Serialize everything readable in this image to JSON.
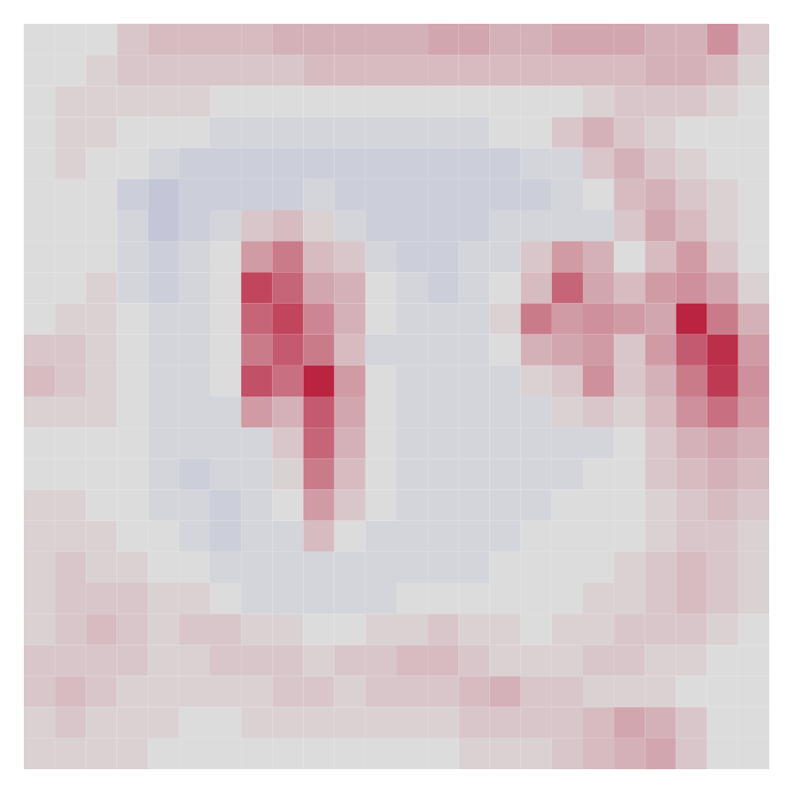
{
  "chart_data": {
    "type": "heatmap",
    "tick_labels": false,
    "zlim": [
      -1,
      1
    ],
    "z": [
      [
        0,
        0,
        0,
        0.1,
        0.15,
        0.15,
        0.15,
        0.15,
        0.2,
        0.2,
        0.2,
        0.2,
        0.2,
        0.25,
        0.25,
        0.2,
        0.2,
        0.25,
        0.25,
        0.25,
        0.2,
        0.2,
        0.35,
        0.1
      ],
      [
        0,
        0,
        0.05,
        0.1,
        0.1,
        0.1,
        0.1,
        0.1,
        0.1,
        0.15,
        0.15,
        0.15,
        0.15,
        0.15,
        0.15,
        0.15,
        0.15,
        0.15,
        0.15,
        0.15,
        0.2,
        0.2,
        0.15,
        0.05
      ],
      [
        0,
        0.05,
        0.05,
        0.05,
        0.05,
        0.05,
        0,
        0,
        0,
        0,
        0,
        0,
        0,
        0,
        0,
        0,
        0,
        0,
        0.05,
        0.1,
        0.1,
        0.1,
        0.05,
        0
      ],
      [
        0,
        0.05,
        0.05,
        0,
        0,
        0,
        -0.05,
        -0.05,
        -0.05,
        -0.05,
        -0.05,
        -0.05,
        -0.05,
        -0.05,
        -0.05,
        0,
        0,
        0.1,
        0.2,
        0.1,
        0.05,
        0,
        0,
        0
      ],
      [
        0,
        0.05,
        0,
        0,
        -0.05,
        -0.1,
        -0.1,
        -0.1,
        -0.1,
        -0.1,
        -0.1,
        -0.1,
        -0.1,
        -0.1,
        -0.1,
        -0.1,
        -0.05,
        -0.05,
        0.1,
        0.2,
        0.1,
        0.05,
        0,
        0
      ],
      [
        0,
        0,
        0,
        -0.1,
        -0.15,
        -0.1,
        -0.1,
        -0.1,
        -0.1,
        -0.05,
        -0.1,
        -0.1,
        -0.1,
        -0.1,
        -0.1,
        -0.1,
        -0.1,
        -0.05,
        0,
        0.15,
        0.2,
        0.1,
        0.05,
        0
      ],
      [
        0,
        0,
        0,
        -0.05,
        -0.15,
        -0.1,
        -0.05,
        0.1,
        0.15,
        0.05,
        -0.05,
        -0.1,
        -0.1,
        -0.1,
        -0.1,
        -0.05,
        -0.05,
        -0.05,
        -0.05,
        0.1,
        0.25,
        0.15,
        0.05,
        0
      ],
      [
        0,
        0,
        0,
        -0.05,
        -0.1,
        -0.05,
        0,
        0.3,
        0.45,
        0.15,
        0.1,
        -0.05,
        -0.1,
        -0.1,
        -0.05,
        -0.05,
        0.1,
        0.3,
        0.2,
        0,
        0.15,
        0.3,
        0.1,
        0
      ],
      [
        0,
        0,
        0.05,
        -0.05,
        -0.1,
        -0.05,
        0,
        0.7,
        0.55,
        0.25,
        0.2,
        0,
        -0.05,
        -0.1,
        -0.05,
        0,
        0.15,
        0.55,
        0.25,
        0.15,
        0.3,
        0.35,
        0.25,
        0.05
      ],
      [
        0,
        0.05,
        0.05,
        0,
        -0.05,
        -0.05,
        0,
        0.55,
        0.7,
        0.4,
        0.2,
        0,
        -0.05,
        -0.05,
        -0.05,
        0.05,
        0.45,
        0.3,
        0.35,
        0.3,
        0.25,
        0.85,
        0.45,
        0.2
      ],
      [
        0.1,
        0.1,
        0.05,
        0,
        -0.05,
        -0.05,
        0,
        0.45,
        0.6,
        0.45,
        0.15,
        -0.05,
        -0.05,
        -0.05,
        -0.05,
        0,
        0.2,
        0.25,
        0.3,
        0.1,
        0.3,
        0.6,
        0.8,
        0.3
      ],
      [
        0.15,
        0.1,
        0.05,
        0,
        -0.05,
        -0.05,
        0,
        0.65,
        0.5,
        0.85,
        0.3,
        0,
        -0.05,
        -0.05,
        -0.05,
        -0.05,
        0.05,
        0.1,
        0.35,
        0.1,
        0.2,
        0.45,
        0.75,
        0.35
      ],
      [
        0.05,
        0.05,
        0.05,
        0,
        -0.05,
        -0.05,
        -0.05,
        0.3,
        0.2,
        0.6,
        0.25,
        0,
        -0.05,
        -0.05,
        -0.05,
        -0.05,
        -0.05,
        0.05,
        0.1,
        0.05,
        0.15,
        0.35,
        0.5,
        0.3
      ],
      [
        0,
        0,
        0,
        0,
        -0.05,
        -0.05,
        -0.05,
        -0.05,
        0.1,
        0.55,
        0.2,
        0,
        -0.05,
        -0.05,
        -0.05,
        -0.05,
        -0.05,
        -0.05,
        -0.05,
        0,
        0.1,
        0.2,
        0.25,
        0.2
      ],
      [
        0,
        0,
        0,
        0,
        -0.05,
        -0.1,
        -0.05,
        -0.05,
        0.05,
        0.45,
        0.15,
        0,
        -0.05,
        -0.05,
        -0.05,
        -0.05,
        -0.05,
        -0.05,
        0,
        0,
        0.1,
        0.15,
        0.2,
        0.15
      ],
      [
        0.05,
        0.05,
        0,
        0,
        -0.05,
        -0.05,
        -0.1,
        -0.05,
        0,
        0.3,
        0.1,
        0,
        -0.05,
        -0.05,
        -0.05,
        -0.05,
        -0.05,
        0,
        0,
        0,
        0.05,
        0.1,
        0.15,
        0.1
      ],
      [
        0.05,
        0.05,
        0.05,
        0,
        0,
        -0.05,
        -0.1,
        -0.05,
        -0.05,
        0.15,
        0,
        -0.05,
        -0.05,
        -0.05,
        -0.05,
        -0.05,
        0,
        0,
        0,
        0,
        0.05,
        0.1,
        0.1,
        0.05
      ],
      [
        0.05,
        0.1,
        0.05,
        0.05,
        0,
        0,
        -0.05,
        -0.05,
        -0.05,
        -0.05,
        -0.05,
        -0.05,
        -0.05,
        -0.05,
        -0.05,
        0,
        0,
        0,
        0,
        0.05,
        0.1,
        0.15,
        0.1,
        0.05
      ],
      [
        0.05,
        0.1,
        0.1,
        0.1,
        0.05,
        0.05,
        0,
        -0.05,
        -0.05,
        -0.05,
        -0.05,
        -0.05,
        0,
        0,
        0,
        0,
        0,
        0,
        0.05,
        0.05,
        0.1,
        0.15,
        0.1,
        0.05
      ],
      [
        0.05,
        0.1,
        0.15,
        0.1,
        0.05,
        0.1,
        0.1,
        0.05,
        0.05,
        0,
        0,
        0.05,
        0.05,
        0.1,
        0.05,
        0.05,
        0,
        0.05,
        0.05,
        0.1,
        0.1,
        0.1,
        0.05,
        0
      ],
      [
        0.1,
        0.1,
        0.1,
        0.1,
        0.05,
        0.05,
        0.1,
        0.1,
        0.1,
        0.05,
        0.1,
        0.1,
        0.15,
        0.15,
        0.1,
        0.05,
        0.05,
        0.05,
        0.1,
        0.1,
        0.05,
        0.05,
        0,
        0
      ],
      [
        0.1,
        0.15,
        0.1,
        0.05,
        0.05,
        0.05,
        0.05,
        0.05,
        0.1,
        0.1,
        0.05,
        0.1,
        0.1,
        0.1,
        0.15,
        0.2,
        0.1,
        0.1,
        0.05,
        0.05,
        0.05,
        0,
        0,
        0
      ],
      [
        0.05,
        0.1,
        0.05,
        0.05,
        0.05,
        0,
        0,
        0.05,
        0.05,
        0.05,
        0.05,
        0.05,
        0.05,
        0.05,
        0.1,
        0.1,
        0.1,
        0.1,
        0.15,
        0.25,
        0.2,
        0.1,
        0,
        0
      ],
      [
        0.05,
        0.05,
        0.05,
        0.05,
        0,
        0,
        0,
        0,
        0,
        0,
        0,
        0,
        0,
        0,
        0.05,
        0.05,
        0.05,
        0.1,
        0.15,
        0.2,
        0.25,
        0.1,
        0,
        0
      ]
    ]
  }
}
